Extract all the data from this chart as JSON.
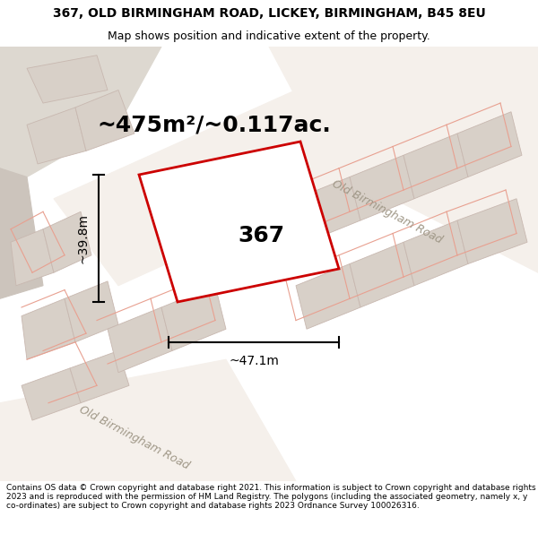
{
  "title_line1": "367, OLD BIRMINGHAM ROAD, LICKEY, BIRMINGHAM, B45 8EU",
  "title_line2": "Map shows position and indicative extent of the property.",
  "footer_text": "Contains OS data © Crown copyright and database right 2021. This information is subject to Crown copyright and database rights 2023 and is reproduced with the permission of HM Land Registry. The polygons (including the associated geometry, namely x, y co-ordinates) are subject to Crown copyright and database rights 2023 Ordnance Survey 100026316.",
  "area_label": "~475m²/~0.117ac.",
  "property_number": "367",
  "width_label": "~47.1m",
  "height_label": "~39.8m",
  "map_bg": "#ede8e0",
  "road_surface": "#f5f0eb",
  "building_fill": "#d8d0c8",
  "building_edge": "#c8b8b0",
  "plot_red": "#cc0000",
  "boundary_pink": "#e8a090",
  "road_label_color": "#a09888",
  "title_fontsize": 10,
  "subtitle_fontsize": 9,
  "area_fontsize": 18,
  "number_fontsize": 18,
  "dim_fontsize": 10,
  "road_fontsize": 9
}
